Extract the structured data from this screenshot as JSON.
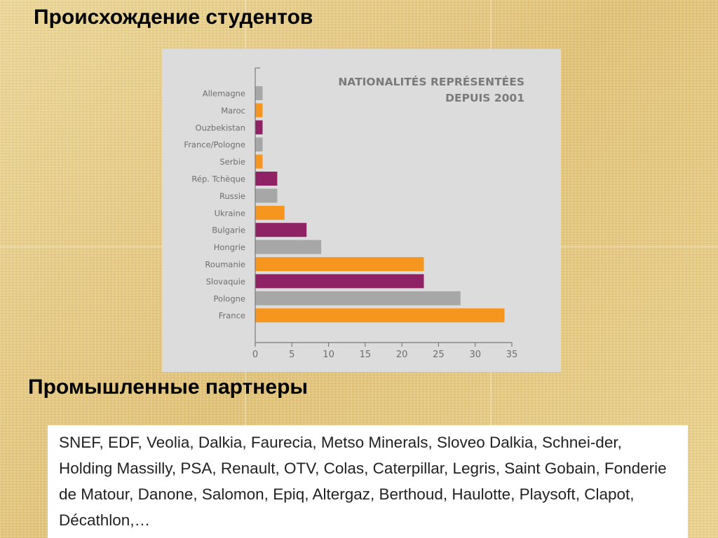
{
  "headings": {
    "origin": "Происхождение студентов",
    "partners": "Промышленные партнеры"
  },
  "partners_text": "SNEF, EDF, Veolia, Dalkia, Faurecia, Metso Minerals, Sloveo Dalkia, Schnei-der, Holding Massilly, PSA, Renault, OTV, Colas, Caterpillar, Legris, Saint Gobain, Fonderie de Matour, Danone, Salomon, Epiq, Altergaz, Berthoud, Haulotte, Playsoft, Clapot, Décathlon,…",
  "colors": {
    "gray": "#a7a7a7",
    "orange": "#f7961e",
    "purple": "#8e2265"
  },
  "chart_data": {
    "type": "bar",
    "orientation": "horizontal",
    "title_lines": [
      "NATIONALITÉS REPRÉSENTÉES",
      "DEPUIS 2001"
    ],
    "categories": [
      "Allemagne",
      "Maroc",
      "Ouzbekistan",
      "France/Pologne",
      "Serbie",
      "Rép. Tchèque",
      "Russie",
      "Ukraine",
      "Bulgarie",
      "Hongrie",
      "Roumanie",
      "Slovaquie",
      "Pologne",
      "France"
    ],
    "values": [
      1,
      1,
      1,
      1,
      1,
      3,
      3,
      4,
      7,
      9,
      23,
      23,
      28,
      34
    ],
    "bar_colors": [
      "gray",
      "orange",
      "purple",
      "gray",
      "orange",
      "purple",
      "gray",
      "orange",
      "purple",
      "gray",
      "orange",
      "purple",
      "gray",
      "orange"
    ],
    "xlim": [
      0,
      35
    ],
    "xticks": [
      "0",
      "5",
      "10",
      "15",
      "20",
      "25",
      "30",
      "35"
    ],
    "grid": false
  }
}
